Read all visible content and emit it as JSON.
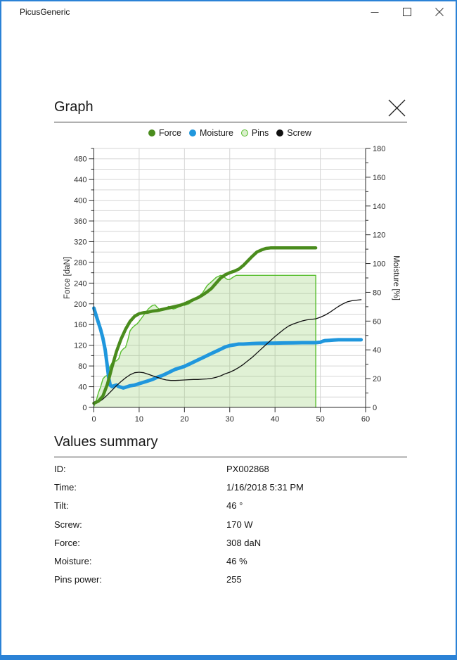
{
  "window": {
    "title": "PicusGeneric"
  },
  "colors": {
    "accent": "#2b82d6",
    "force_green": "#4a8c1d",
    "moisture_blue": "#2097dd",
    "pins_green": "#58be2f",
    "pins_fill": "rgba(115,192,62,0.22)",
    "screw_black": "#111111",
    "gridline": "#d6d6d6",
    "axis": "#2a2a2a"
  },
  "dialog": {
    "title": "Graph"
  },
  "legend": {
    "items": [
      {
        "label": "Force",
        "color": "#4a8c1d",
        "style": "solid"
      },
      {
        "label": "Moisture",
        "color": "#2097dd",
        "style": "solid"
      },
      {
        "label": "Pins",
        "color": "#58be2f",
        "style": "hollow",
        "fill": "#daefcc"
      },
      {
        "label": "Screw",
        "color": "#111111",
        "style": "solid"
      }
    ]
  },
  "chart_data": {
    "type": "line",
    "title": "",
    "x_axis": {
      "label": "",
      "min": 0,
      "max": 60,
      "major_step": 10
    },
    "y_left": {
      "label": "Force [daN]",
      "min": 0,
      "max": 500,
      "label_max": 480,
      "major_step": 40,
      "minor_step": 20
    },
    "y_right": {
      "label": "Moisture [%]",
      "min": 0,
      "max": 180,
      "label_max": 180,
      "major_step": 20,
      "minor_step": 10
    },
    "grid": {
      "h_step": 20,
      "v_step": 10
    },
    "series": [
      {
        "name": "Pins",
        "axis": "left",
        "color": "#58be2f",
        "width": 1.4,
        "fill": "rgba(115,192,62,0.22)",
        "x": [
          0,
          0.5,
          1,
          1.5,
          2,
          2.5,
          3,
          3.5,
          4,
          4.5,
          5,
          5.5,
          6,
          6.5,
          7,
          7.5,
          8,
          8.5,
          9,
          9.5,
          10,
          10.5,
          11,
          11.5,
          12,
          12.5,
          13,
          13.5,
          14,
          14.5,
          15,
          15.5,
          16,
          16.5,
          17,
          17.5,
          18,
          18.5,
          19,
          19.5,
          20,
          21,
          22,
          23,
          24,
          25,
          26,
          26.5,
          27,
          27.5,
          28,
          28.5,
          29,
          29.5,
          30,
          30.5,
          31,
          31.5,
          32,
          34,
          36,
          38,
          40,
          42,
          44,
          46,
          48,
          49,
          49
        ],
        "y": [
          2,
          12,
          28,
          40,
          55,
          60,
          62,
          78,
          86,
          89,
          90,
          94,
          108,
          113,
          116,
          130,
          148,
          154,
          158,
          161,
          166,
          172,
          178,
          184,
          190,
          194,
          197,
          198,
          193,
          189,
          187,
          188,
          192,
          195,
          193,
          190,
          191,
          193,
          196,
          198,
          197,
          200,
          207,
          213,
          221,
          235,
          243,
          247,
          251,
          253,
          255,
          254,
          250,
          247,
          247,
          250,
          253,
          255,
          255,
          255,
          255,
          255,
          255,
          255,
          255,
          255,
          255,
          255,
          0
        ]
      },
      {
        "name": "Moisture",
        "axis": "right",
        "color": "#2097dd",
        "width": 5,
        "x": [
          0,
          0.5,
          1,
          1.5,
          2,
          2.5,
          3,
          3.3,
          3.6,
          4,
          4.5,
          5,
          5.5,
          6,
          6.5,
          7,
          7.5,
          8,
          9,
          10,
          11,
          12,
          13,
          14,
          15,
          16,
          17,
          18,
          19,
          20,
          21,
          22,
          23,
          24,
          25,
          26,
          27,
          28,
          29,
          30,
          31,
          32,
          33,
          34,
          35,
          36,
          38,
          40,
          42,
          44,
          46,
          48,
          49,
          50,
          50.5,
          51,
          52,
          53,
          54,
          56,
          58,
          59
        ],
        "y": [
          69,
          64,
          59,
          54,
          48,
          40,
          28,
          20,
          15.5,
          14.5,
          15,
          15.5,
          14.5,
          14,
          13.5,
          14,
          14.5,
          15,
          15.5,
          16.5,
          17.5,
          18.5,
          19.5,
          21,
          22,
          23.5,
          25,
          26.5,
          27.5,
          28.5,
          30,
          31.5,
          33,
          34.5,
          36,
          37.5,
          39,
          40.5,
          42,
          43,
          43.5,
          44,
          44,
          44.2,
          44.4,
          44.5,
          44.6,
          44.7,
          44.8,
          44.9,
          45,
          45,
          45,
          45.3,
          46,
          46.4,
          46.6,
          46.8,
          47,
          47,
          47,
          47
        ]
      },
      {
        "name": "Screw",
        "axis": "left",
        "color": "#111111",
        "width": 1.3,
        "x": [
          0,
          1,
          2,
          3,
          4,
          5,
          6,
          7,
          8,
          9,
          10,
          11,
          12,
          13,
          14,
          15,
          16,
          17,
          18,
          19,
          20,
          21,
          22,
          23,
          24,
          25,
          26,
          27,
          28,
          29,
          30,
          31,
          32,
          33,
          34,
          35,
          36,
          37,
          38,
          39,
          40,
          41,
          42,
          43,
          44,
          45,
          46,
          47,
          48,
          49,
          50,
          51,
          52,
          53,
          54,
          55,
          56,
          57,
          58,
          59
        ],
        "y": [
          6,
          10,
          16,
          24,
          33,
          42,
          50,
          57,
          63,
          67,
          68,
          67,
          64,
          61,
          58,
          55,
          53,
          52,
          52,
          52.5,
          53,
          53.5,
          54,
          54,
          54.5,
          55,
          56,
          58,
          61,
          65,
          68,
          72,
          77,
          83,
          90,
          97,
          105,
          113,
          121,
          129,
          137,
          144,
          151,
          157,
          161,
          164,
          167,
          169,
          170,
          171,
          174,
          178,
          183,
          189,
          195,
          200,
          204,
          206,
          207,
          208
        ]
      },
      {
        "name": "Force",
        "axis": "left",
        "color": "#4a8c1d",
        "width": 4.5,
        "x": [
          0,
          1,
          2,
          3,
          4,
          5,
          6,
          7,
          8,
          9,
          10,
          11,
          12,
          13,
          14,
          15,
          16,
          17,
          18,
          19,
          20,
          21,
          22,
          23,
          24,
          25,
          26,
          27,
          28,
          29,
          30,
          31,
          32,
          33,
          34,
          35,
          36,
          37,
          38,
          39,
          40,
          42,
          44,
          46,
          48,
          49
        ],
        "y": [
          8,
          12,
          22,
          45,
          78,
          108,
          132,
          151,
          166,
          176,
          181,
          183,
          184,
          186,
          187,
          189,
          191,
          193,
          195,
          197,
          200,
          204,
          208,
          212,
          217,
          223,
          230,
          240,
          250,
          256,
          260,
          263,
          267,
          274,
          283,
          292,
          300,
          304,
          307,
          308,
          308,
          308,
          308,
          308,
          308,
          308
        ]
      }
    ]
  },
  "summary": {
    "title": "Values summary",
    "rows": [
      {
        "label": "ID:",
        "value": "PX002868"
      },
      {
        "label": "Time:",
        "value": "1/16/2018 5:31 PM"
      },
      {
        "label": "Tilt:",
        "value": "46 °"
      },
      {
        "label": "Screw:",
        "value": "170 W"
      },
      {
        "label": "Force:",
        "value": "308 daN"
      },
      {
        "label": "Moisture:",
        "value": "46 %"
      },
      {
        "label": "Pins power:",
        "value": "255"
      }
    ]
  }
}
